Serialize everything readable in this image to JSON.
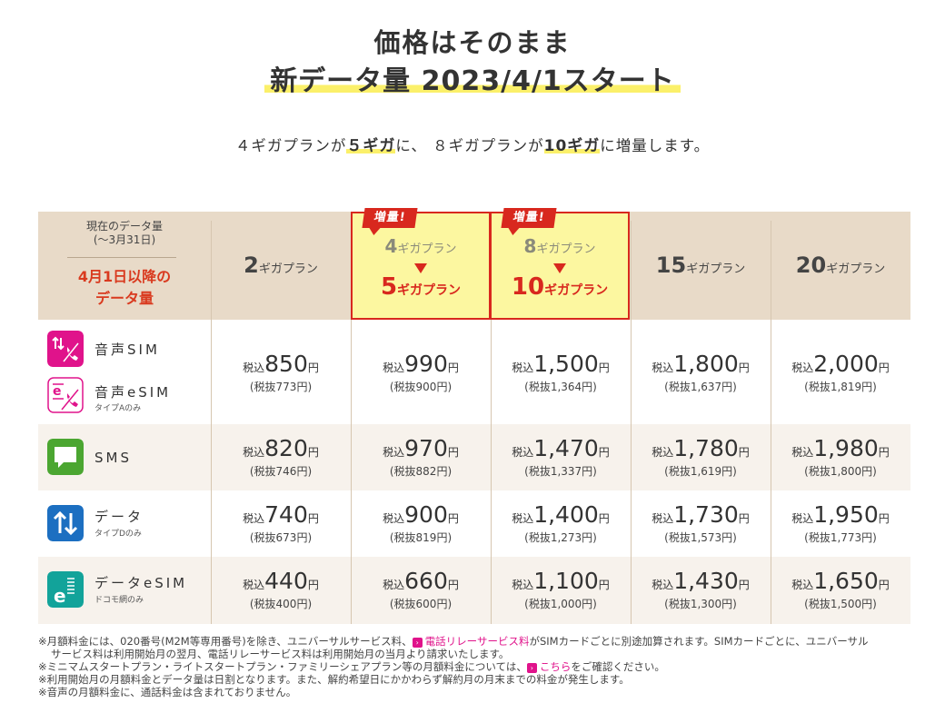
{
  "heading": {
    "line1": "価格はそのまま",
    "line2": "新データ量 2023/4/1スタート"
  },
  "subtitle": {
    "p1": "４ギガプランが",
    "h1": "５ギガ",
    "p2": "に、 ８ギガプランが",
    "h2": "10ギガ",
    "p3": "に増量します。"
  },
  "corner": {
    "current_label": "現在のデータ量",
    "current_sub": "(〜3月31日)",
    "new_label_1": "4月1日以降の",
    "new_label_2": "データ量"
  },
  "plans": [
    {
      "num": "2",
      "unit": "ギガプラン"
    },
    {
      "badge": "増量!",
      "old_num": "4",
      "old_unit": "ギガプラン",
      "num": "5",
      "unit": "ギガプラン"
    },
    {
      "badge": "増量!",
      "old_num": "8",
      "old_unit": "ギガプラン",
      "num": "10",
      "unit": "ギガプラン"
    },
    {
      "num": "15",
      "unit": "ギガプラン"
    },
    {
      "num": "20",
      "unit": "ギガプラン"
    }
  ],
  "price_labels": {
    "tax_in": "税込",
    "yen": "円"
  },
  "rows": [
    {
      "services": [
        {
          "name": "音声SIM",
          "note": "",
          "icon": "voice-sim-icon",
          "color": "#e0138b"
        },
        {
          "name": "音声eSIM",
          "note": "タイプAのみ",
          "icon": "voice-esim-icon",
          "color": "#e0138b"
        }
      ],
      "prices": [
        {
          "value": "850",
          "excl": "(税抜773円)"
        },
        {
          "value": "990",
          "excl": "(税抜900円)"
        },
        {
          "value": "1,500",
          "excl": "(税抜1,364円)"
        },
        {
          "value": "1,800",
          "excl": "(税抜1,637円)"
        },
        {
          "value": "2,000",
          "excl": "(税抜1,819円)"
        }
      ]
    },
    {
      "services": [
        {
          "name": "SMS",
          "note": "",
          "icon": "sms-icon",
          "color": "#4ba631"
        }
      ],
      "prices": [
        {
          "value": "820",
          "excl": "(税抜746円)"
        },
        {
          "value": "970",
          "excl": "(税抜882円)"
        },
        {
          "value": "1,470",
          "excl": "(税抜1,337円)"
        },
        {
          "value": "1,780",
          "excl": "(税抜1,619円)"
        },
        {
          "value": "1,980",
          "excl": "(税抜1,800円)"
        }
      ]
    },
    {
      "services": [
        {
          "name": "データ",
          "note": "タイプDのみ",
          "icon": "data-icon",
          "color": "#1c6fc1"
        }
      ],
      "prices": [
        {
          "value": "740",
          "excl": "(税抜673円)"
        },
        {
          "value": "900",
          "excl": "(税抜819円)"
        },
        {
          "value": "1,400",
          "excl": "(税抜1,273円)"
        },
        {
          "value": "1,730",
          "excl": "(税抜1,573円)"
        },
        {
          "value": "1,950",
          "excl": "(税抜1,773円)"
        }
      ]
    },
    {
      "services": [
        {
          "name": "データeSIM",
          "note": "ドコモ網のみ",
          "icon": "data-esim-icon",
          "color": "#12a39a"
        }
      ],
      "prices": [
        {
          "value": "440",
          "excl": "(税抜400円)"
        },
        {
          "value": "660",
          "excl": "(税抜600円)"
        },
        {
          "value": "1,100",
          "excl": "(税抜1,000円)"
        },
        {
          "value": "1,430",
          "excl": "(税抜1,300円)"
        },
        {
          "value": "1,650",
          "excl": "(税抜1,500円)"
        }
      ]
    }
  ],
  "notes": {
    "n1a": "※月額料金には、020番号(M2M等専用番号)を除き、ユニバーサルサービス料、",
    "n1_link": "電話リレーサービス料",
    "n1b": "がSIMカードごとに別途加算されます。SIMカードごとに、ユニバーサル",
    "n1c": "サービス料は利用開始月の翌月、電話リレーサービス料は利用開始月の当月より請求いたします。",
    "n2a": "※ミニマムスタートプラン・ライトスタートプラン・ファミリーシェアプラン等の月額料金については、",
    "n2_link": "こちら",
    "n2b": "をご確認ください。",
    "n3": "※利用開始月の月額料金とデータ量は日割となります。また、解約希望日にかかわらず解約月の月末までの料金が発生します。",
    "n4": "※音声の月額料金に、通話料金は含まれておりません。"
  }
}
